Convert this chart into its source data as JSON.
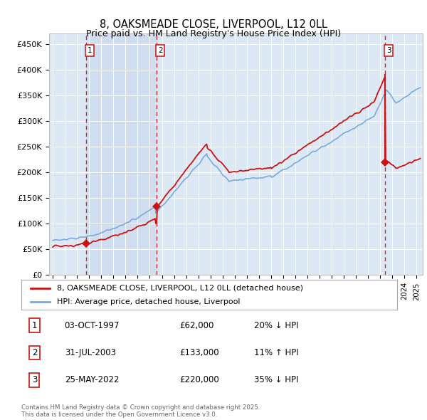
{
  "title_line1": "8, OAKSMEADE CLOSE, LIVERPOOL, L12 0LL",
  "title_line2": "Price paid vs. HM Land Registry's House Price Index (HPI)",
  "bg_color": "#dce9f5",
  "ylabel_ticks": [
    "£0",
    "£50K",
    "£100K",
    "£150K",
    "£200K",
    "£250K",
    "£300K",
    "£350K",
    "£400K",
    "£450K"
  ],
  "ytick_values": [
    0,
    50000,
    100000,
    150000,
    200000,
    250000,
    300000,
    350000,
    400000,
    450000
  ],
  "ylim": [
    0,
    470000
  ],
  "xlim_start": 1994.7,
  "xlim_end": 2025.5,
  "purchase_dates": [
    1997.75,
    2003.58,
    2022.4
  ],
  "purchase_prices": [
    62000,
    133000,
    220000
  ],
  "purchase_labels": [
    "1",
    "2",
    "3"
  ],
  "hpi_color": "#7aaadd",
  "price_color": "#cc1111",
  "shade_color": "#c8d8ee",
  "legend_label_price": "8, OAKSMEADE CLOSE, LIVERPOOL, L12 0LL (detached house)",
  "legend_label_hpi": "HPI: Average price, detached house, Liverpool",
  "table_data": [
    {
      "label": "1",
      "date": "03-OCT-1997",
      "price": "£62,000",
      "hpi": "20% ↓ HPI"
    },
    {
      "label": "2",
      "date": "31-JUL-2003",
      "price": "£133,000",
      "hpi": "11% ↑ HPI"
    },
    {
      "label": "3",
      "date": "25-MAY-2022",
      "price": "£220,000",
      "hpi": "35% ↓ HPI"
    }
  ],
  "footer": "Contains HM Land Registry data © Crown copyright and database right 2025.\nThis data is licensed under the Open Government Licence v3.0."
}
